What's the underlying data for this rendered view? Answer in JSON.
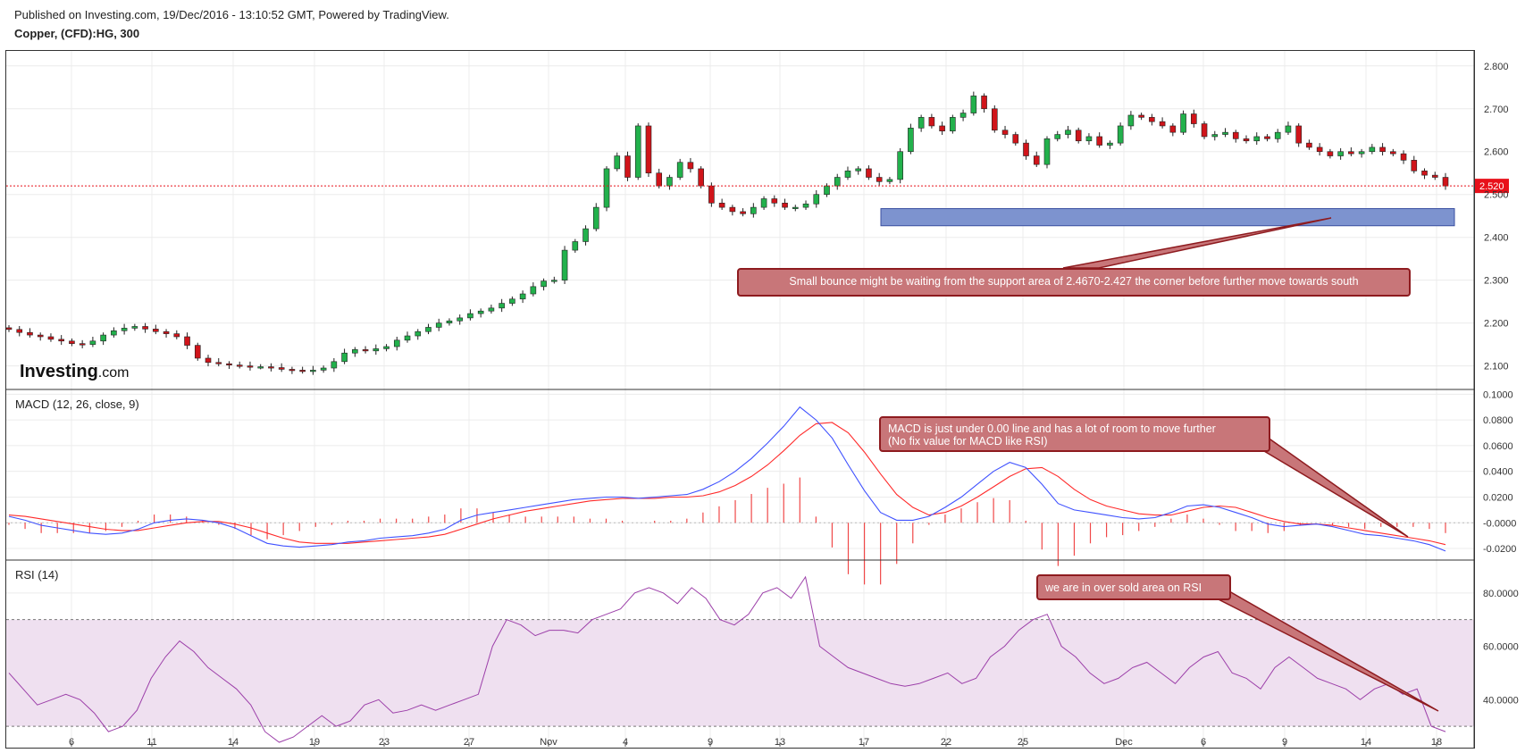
{
  "header": {
    "published": "Published on Investing.com, 19/Dec/2016 - 13:10:52 GMT, Powered by TradingView.",
    "symbol": "Copper, (CFD):HG, 300"
  },
  "logo": {
    "main": "Investing",
    "suffix": ".com"
  },
  "panels": {
    "macd_label": "MACD (12, 26, close, 9)",
    "rsi_label": "RSI (14)"
  },
  "annotations": {
    "price_note": "Small bounce might be waiting from the support area of 2.4670-2.427 the corner before further move towards south",
    "macd_note_1": "MACD is just under 0.00 line and has a lot of room to move further",
    "macd_note_2": "(No fix value for MACD like RSI)",
    "rsi_note": "we are in over sold area on RSI"
  },
  "colors": {
    "up_candle": "#22b14c",
    "down_candle": "#d0141a",
    "macd_line": "#3f51ff",
    "signal_line": "#ff2a2a",
    "rsi_line": "#9c3fa9",
    "rsi_band": "#efe0f0",
    "support_zone": "#7d93cf",
    "last_price_bg": "#e8101a"
  },
  "chart_data": [
    {
      "type": "candlestick",
      "title": "Copper, (CFD):HG, 300",
      "x_ticks": [
        "6",
        "11",
        "14",
        "19",
        "23",
        "27",
        "Nov",
        "4",
        "9",
        "13",
        "17",
        "22",
        "25",
        "Dec",
        "6",
        "9",
        "14",
        "18"
      ],
      "y_ticks": [
        "2.800",
        "2.700",
        "2.600",
        "2.500",
        "2.400",
        "2.300",
        "2.200",
        "2.100"
      ],
      "ylim": [
        2.045,
        2.835
      ],
      "last_price": 2.52,
      "last_price_label": "2.520",
      "support_zone": [
        2.427,
        2.467
      ],
      "close_series": [
        2.185,
        2.178,
        2.172,
        2.168,
        2.162,
        2.158,
        2.152,
        2.15,
        2.158,
        2.172,
        2.182,
        2.188,
        2.192,
        2.186,
        2.18,
        2.175,
        2.168,
        2.148,
        2.118,
        2.108,
        2.105,
        2.102,
        2.1,
        2.098,
        2.098,
        2.096,
        2.092,
        2.09,
        2.088,
        2.09,
        2.095,
        2.11,
        2.13,
        2.138,
        2.135,
        2.14,
        2.145,
        2.16,
        2.17,
        2.18,
        2.19,
        2.2,
        2.205,
        2.212,
        2.222,
        2.228,
        2.235,
        2.246,
        2.256,
        2.268,
        2.285,
        2.298,
        2.3,
        2.37,
        2.39,
        2.42,
        2.47,
        2.56,
        2.59,
        2.54,
        2.66,
        2.55,
        2.52,
        2.54,
        2.575,
        2.56,
        2.52,
        2.48,
        2.47,
        2.46,
        2.455,
        2.47,
        2.49,
        2.48,
        2.47,
        2.47,
        2.478,
        2.5,
        2.52,
        2.54,
        2.555,
        2.56,
        2.54,
        2.53,
        2.535,
        2.6,
        2.655,
        2.68,
        2.66,
        2.648,
        2.68,
        2.69,
        2.73,
        2.7,
        2.65,
        2.64,
        2.62,
        2.59,
        2.57,
        2.63,
        2.64,
        2.65,
        2.625,
        2.635,
        2.615,
        2.62,
        2.66,
        2.685,
        2.68,
        2.67,
        2.66,
        2.645,
        2.688,
        2.665,
        2.635,
        2.64,
        2.645,
        2.63,
        2.625,
        2.635,
        2.63,
        2.645,
        2.66,
        2.62,
        2.61,
        2.6,
        2.59,
        2.6,
        2.595,
        2.6,
        2.61,
        2.6,
        2.595,
        2.58,
        2.555,
        2.545,
        2.54,
        2.52
      ],
      "visible_text": []
    },
    {
      "type": "line",
      "title": "MACD (12, 26, close, 9)",
      "y_ticks": [
        "0.1000",
        "0.0800",
        "0.0600",
        "0.0400",
        "0.0200",
        "-0.0000",
        "-0.0200"
      ],
      "ylim": [
        -0.029,
        0.103
      ],
      "series": [
        {
          "name": "MACD",
          "values": [
            0.005,
            0.002,
            -0.002,
            -0.004,
            -0.006,
            -0.008,
            -0.009,
            -0.008,
            -0.005,
            0.0,
            0.002,
            0.003,
            0.002,
            0.0,
            -0.004,
            -0.01,
            -0.016,
            -0.018,
            -0.019,
            -0.018,
            -0.017,
            -0.015,
            -0.014,
            -0.012,
            -0.011,
            -0.01,
            -0.008,
            -0.005,
            0.002,
            0.006,
            0.008,
            0.01,
            0.012,
            0.014,
            0.016,
            0.018,
            0.019,
            0.02,
            0.02,
            0.019,
            0.02,
            0.021,
            0.022,
            0.026,
            0.032,
            0.04,
            0.05,
            0.062,
            0.075,
            0.09,
            0.08,
            0.066,
            0.045,
            0.025,
            0.008,
            0.002,
            0.002,
            0.005,
            0.012,
            0.02,
            0.03,
            0.04,
            0.047,
            0.043,
            0.03,
            0.015,
            0.01,
            0.008,
            0.006,
            0.004,
            0.003,
            0.004,
            0.008,
            0.013,
            0.014,
            0.012,
            0.008,
            0.004,
            -0.001,
            -0.003,
            -0.002,
            -0.001,
            -0.003,
            -0.006,
            -0.009,
            -0.01,
            -0.012,
            -0.014,
            -0.017,
            -0.022
          ]
        },
        {
          "name": "Signal",
          "values": [
            0.006,
            0.005,
            0.003,
            0.001,
            -0.001,
            -0.003,
            -0.005,
            -0.006,
            -0.006,
            -0.004,
            -0.002,
            0.0,
            0.001,
            0.001,
            -0.001,
            -0.004,
            -0.008,
            -0.012,
            -0.015,
            -0.016,
            -0.016,
            -0.016,
            -0.015,
            -0.014,
            -0.013,
            -0.012,
            -0.011,
            -0.009,
            -0.005,
            -0.001,
            0.003,
            0.006,
            0.009,
            0.011,
            0.013,
            0.015,
            0.017,
            0.018,
            0.019,
            0.019,
            0.019,
            0.02,
            0.02,
            0.021,
            0.024,
            0.029,
            0.036,
            0.045,
            0.056,
            0.068,
            0.077,
            0.078,
            0.07,
            0.055,
            0.038,
            0.022,
            0.012,
            0.006,
            0.008,
            0.013,
            0.02,
            0.028,
            0.036,
            0.042,
            0.043,
            0.036,
            0.026,
            0.018,
            0.013,
            0.01,
            0.007,
            0.006,
            0.006,
            0.009,
            0.012,
            0.013,
            0.012,
            0.008,
            0.004,
            0.001,
            -0.001,
            -0.001,
            -0.002,
            -0.004,
            -0.006,
            -0.008,
            -0.01,
            -0.012,
            -0.014,
            -0.017
          ]
        }
      ],
      "visible_text": []
    },
    {
      "type": "line",
      "title": "RSI (14)",
      "y_ticks": [
        "80.0000",
        "60.0000",
        "40.0000"
      ],
      "ylim": [
        22,
        92
      ],
      "bands": [
        30,
        70
      ],
      "series": [
        {
          "name": "RSI",
          "values": [
            50,
            44,
            38,
            40,
            42,
            40,
            35,
            28,
            30,
            36,
            48,
            56,
            62,
            58,
            52,
            48,
            44,
            38,
            28,
            24,
            26,
            30,
            34,
            30,
            32,
            38,
            40,
            35,
            36,
            38,
            36,
            38,
            40,
            42,
            60,
            70,
            68,
            64,
            66,
            66,
            65,
            70,
            72,
            74,
            80,
            82,
            80,
            76,
            82,
            78,
            70,
            68,
            72,
            80,
            82,
            78,
            86,
            60,
            56,
            52,
            50,
            48,
            46,
            45,
            46,
            48,
            50,
            46,
            48,
            56,
            60,
            66,
            70,
            72,
            60,
            56,
            50,
            46,
            48,
            52,
            54,
            50,
            46,
            52,
            56,
            58,
            50,
            48,
            44,
            52,
            56,
            52,
            48,
            46,
            44,
            40,
            44,
            46,
            42,
            44,
            30,
            28
          ]
        }
      ],
      "visible_text": []
    }
  ]
}
